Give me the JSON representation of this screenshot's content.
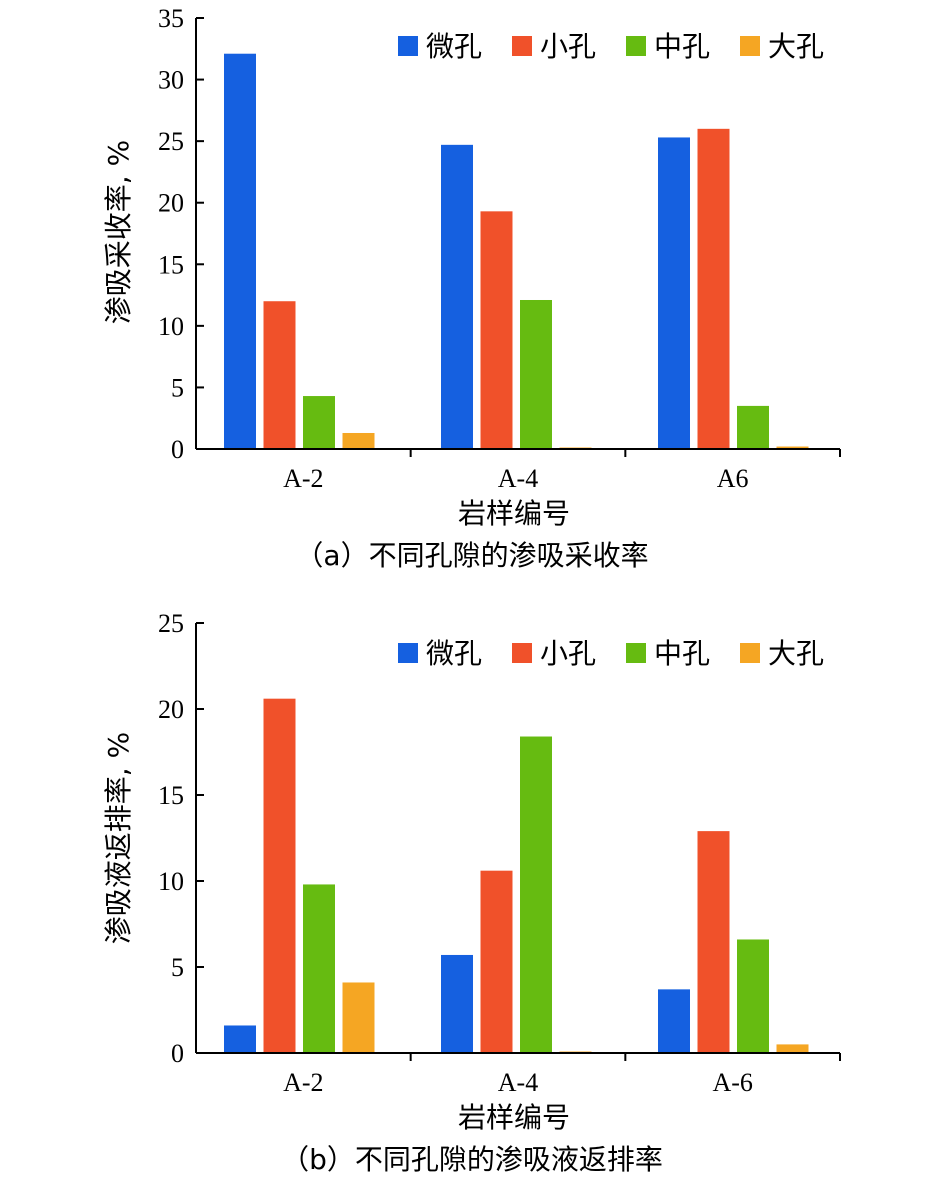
{
  "chart_data": [
    {
      "type": "bar",
      "ylabel": "渗吸采收率, %",
      "xlabel": "岩样编号",
      "caption": "（a）不同孔隙的渗吸采收率",
      "categories": [
        "A-2",
        "A-4",
        "A6"
      ],
      "ylim": [
        0,
        35
      ],
      "yticks": [
        0,
        5,
        10,
        15,
        20,
        25,
        30,
        35
      ],
      "legend_position": "top-right",
      "series": [
        {
          "name": "微孔",
          "color": "#1560E0",
          "values": [
            32.1,
            24.7,
            25.3
          ]
        },
        {
          "name": "小孔",
          "color": "#F0512A",
          "values": [
            12.0,
            19.3,
            26.0
          ]
        },
        {
          "name": "中孔",
          "color": "#66BB11",
          "values": [
            4.3,
            12.1,
            3.5
          ]
        },
        {
          "name": "大孔",
          "color": "#F5A623",
          "values": [
            1.3,
            0.1,
            0.2
          ]
        }
      ]
    },
    {
      "type": "bar",
      "ylabel": "渗吸液返排率, %",
      "xlabel": "岩样编号",
      "caption": "（b）不同孔隙的渗吸液返排率",
      "categories": [
        "A-2",
        "A-4",
        "A-6"
      ],
      "ylim": [
        0,
        25
      ],
      "yticks": [
        0,
        5,
        10,
        15,
        20,
        25
      ],
      "legend_position": "top-right",
      "series": [
        {
          "name": "微孔",
          "color": "#1560E0",
          "values": [
            1.6,
            5.7,
            3.7
          ]
        },
        {
          "name": "小孔",
          "color": "#F0512A",
          "values": [
            20.6,
            10.6,
            12.9
          ]
        },
        {
          "name": "中孔",
          "color": "#66BB11",
          "values": [
            9.8,
            18.4,
            6.6
          ]
        },
        {
          "name": "大孔",
          "color": "#F5A623",
          "values": [
            4.1,
            0.05,
            0.5
          ]
        }
      ]
    }
  ]
}
